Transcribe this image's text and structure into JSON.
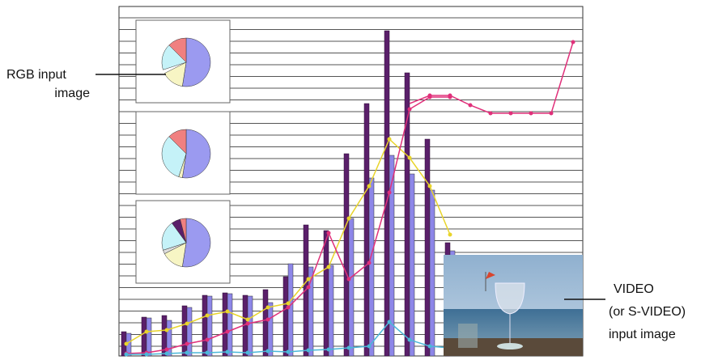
{
  "labels": {
    "rgb": [
      "RGB input",
      "image"
    ],
    "video": [
      "VIDEO",
      "(or S-VIDEO)",
      "input image"
    ]
  }
}
